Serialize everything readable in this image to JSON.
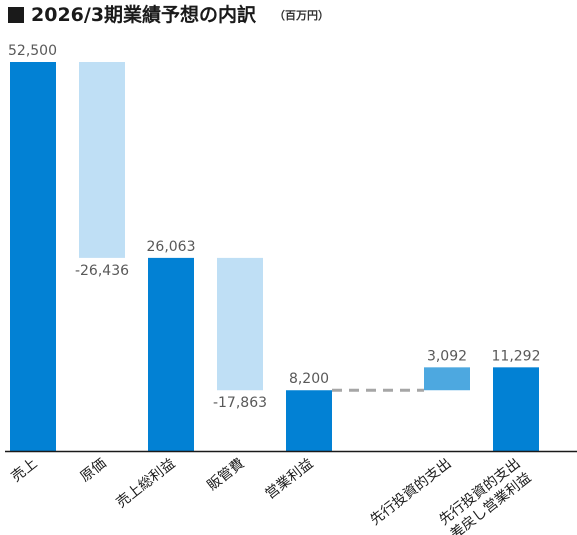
{
  "header": {
    "title": "2026/3期業績予想の内訳",
    "unit": "（百万円）"
  },
  "colors": {
    "total": "#0281d4",
    "decrease": "#bfdff5",
    "increase": "#4da8e0",
    "connector": "#a6a6a6",
    "axis": "#1a1a1a",
    "label": "#595959"
  },
  "chart_data": {
    "type": "bar",
    "subtype": "waterfall",
    "ylim": [
      0,
      52500
    ],
    "grid": false,
    "legend": "none",
    "steps": [
      {
        "category": [
          "売上"
        ],
        "kind": "total",
        "value": 52500,
        "label": "52,500"
      },
      {
        "category": [
          "原価"
        ],
        "kind": "decrease",
        "value": -26436,
        "label": "-26,436"
      },
      {
        "category": [
          "売上総利益"
        ],
        "kind": "total",
        "value": 26063,
        "label": "26,063"
      },
      {
        "category": [
          "販管費"
        ],
        "kind": "decrease",
        "value": -17863,
        "label": "-17,863"
      },
      {
        "category": [
          "営業利益"
        ],
        "kind": "total",
        "value": 8200,
        "label": "8,200"
      },
      {
        "category": [
          "先行投資的支出"
        ],
        "kind": "increase",
        "value": 3092,
        "label": "3,092"
      },
      {
        "category": [
          "先行投資的支出",
          "差戻し営業利益"
        ],
        "kind": "total",
        "value": 11292,
        "label": "11,292"
      }
    ]
  }
}
